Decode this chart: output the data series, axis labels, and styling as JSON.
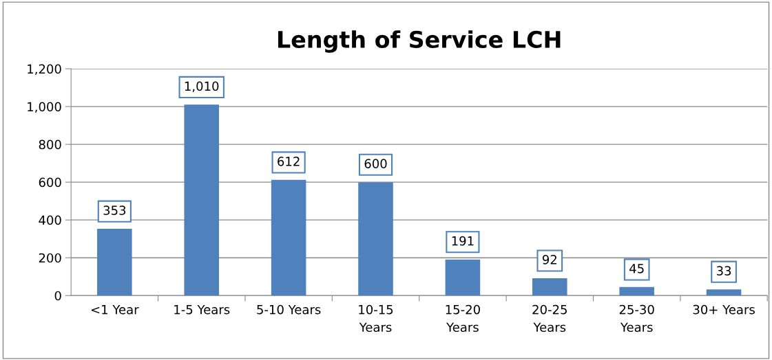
{
  "chart_data": {
    "type": "bar",
    "title": "Length of Service LCH",
    "categories": [
      "<1 Year",
      "1-5 Years",
      "5-10 Years",
      "10-15 Years",
      "15-20 Years",
      "20-25 Years",
      "25-30 Years",
      "30+ Years"
    ],
    "values": [
      353,
      1010,
      612,
      600,
      191,
      92,
      45,
      33
    ],
    "value_labels": [
      "353",
      "1,010",
      "612",
      "600",
      "191",
      "92",
      "45",
      "33"
    ],
    "color": "#4f81bd",
    "ylim": [
      0,
      1200
    ],
    "yticks": [
      0,
      200,
      400,
      600,
      800,
      {
        "value": 1000,
        "label": "1,000"
      },
      {
        "value": 1200,
        "label": "1,200"
      }
    ],
    "grid": "y",
    "legend": false
  }
}
